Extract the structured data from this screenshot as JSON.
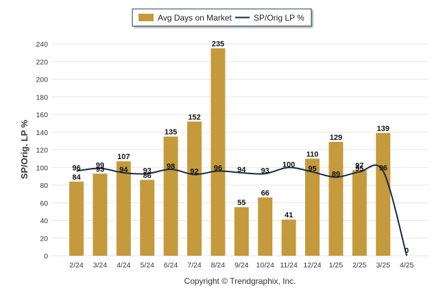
{
  "colors": {
    "bar": "#c49a3c",
    "line": "#0f2748",
    "grid": "#e6e6e6",
    "axis_text": "#333333",
    "legend_border": "#1f3b5e"
  },
  "chart_data": {
    "type": "bar",
    "categories": [
      "2/24",
      "3/24",
      "4/24",
      "5/24",
      "6/24",
      "7/24",
      "8/24",
      "9/24",
      "10/24",
      "11/24",
      "12/24",
      "1/25",
      "2/25",
      "3/25",
      "4/25"
    ],
    "series": [
      {
        "name": "Avg Days on Market",
        "type": "bar",
        "values": [
          84,
          93,
          107,
          86,
          135,
          152,
          235,
          55,
          66,
          41,
          110,
          129,
          97,
          139,
          0
        ],
        "labels": [
          "84",
          "93",
          "107",
          "86",
          "135",
          "152",
          "235",
          "55",
          "66",
          "41",
          "110",
          "129",
          "97",
          "139",
          "0"
        ]
      },
      {
        "name": "SP/Orig LP %",
        "type": "line",
        "values": [
          96,
          99,
          94,
          93,
          98,
          92,
          96,
          94,
          93,
          100,
          95,
          89,
          95,
          96,
          0
        ],
        "labels": [
          "96",
          "99",
          "94",
          "93",
          "98",
          "92",
          "96",
          "94",
          "93",
          "100",
          "95",
          "89",
          "95",
          "96",
          ""
        ]
      }
    ],
    "ylabel": "SP/Orig. LP %",
    "ylim": [
      0,
      240
    ],
    "yticks": [
      0,
      20,
      40,
      60,
      80,
      100,
      120,
      140,
      160,
      180,
      200,
      220,
      240
    ],
    "grid": true,
    "legend_position": "top-center",
    "footer": "Copyright © Trendgraphix, Inc."
  }
}
